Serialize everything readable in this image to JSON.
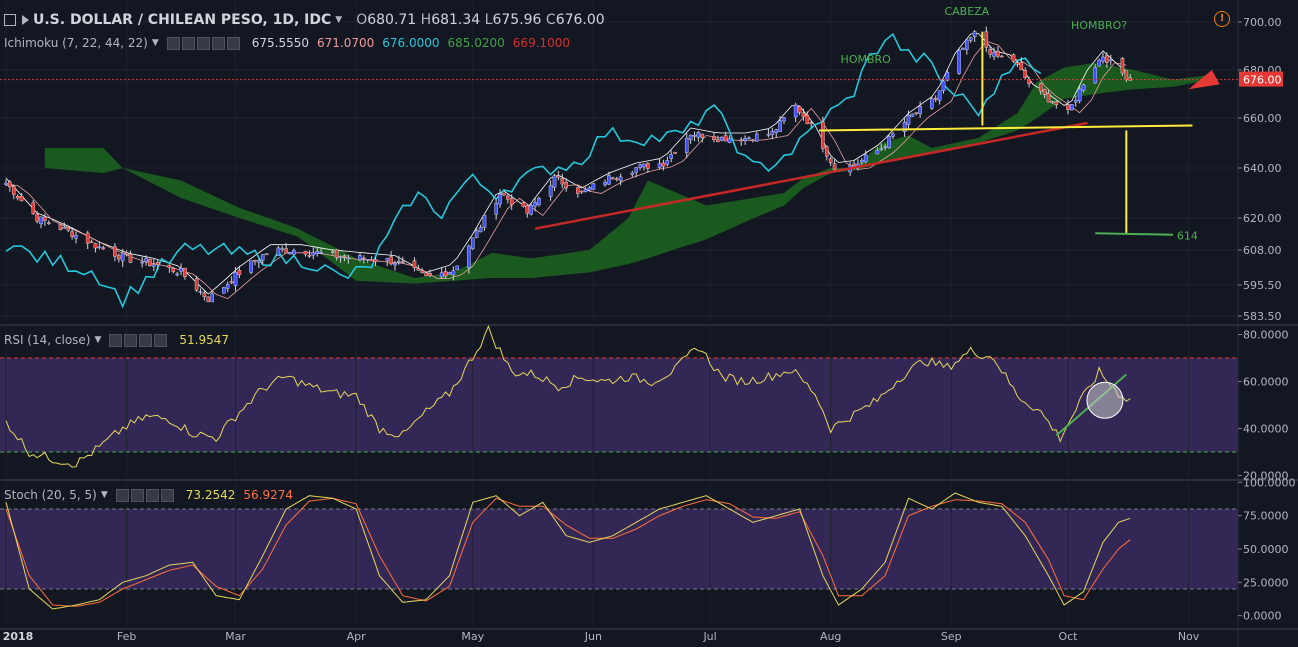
{
  "header": {
    "symbol": "U.S. DOLLAR / CHILEAN PESO, 1D, IDC",
    "open_label": "O",
    "open": "680.71",
    "high_label": "H",
    "high": "681.34",
    "low_label": "L",
    "low": "675.96",
    "close_label": "C",
    "close": "676.00"
  },
  "ichimoku": {
    "label": "Ichimoku (7, 22, 44, 22)",
    "values": [
      "675.5550",
      "671.0700",
      "676.0000",
      "685.0200",
      "669.1000"
    ],
    "colors": [
      "#d1d4dc",
      "#ef9a9a",
      "#26c6da",
      "#43a047",
      "#d32f2f"
    ]
  },
  "rsi": {
    "label": "RSI (14, close)",
    "value": "51.9547"
  },
  "stoch": {
    "label": "Stoch (20, 5, 5)",
    "k": "73.2542",
    "d": "56.9274"
  },
  "colors": {
    "bg": "#131722",
    "up": "#3f51ff",
    "down": "#e53935",
    "tenkan": "#ffffff",
    "kijun": "#e8a0a0",
    "chikou": "#26c6da",
    "kumo_bull": "#1b5e20",
    "kumo_bear": "#b71c1c",
    "rsi": "#e6d85a",
    "stoch_k": "#e6d85a",
    "stoch_d": "#ff6f3c",
    "band": "#3a2a5e"
  },
  "chart_data": [
    {
      "type": "candlestick",
      "price_axis": [
        "700.00",
        "680.00",
        "660.00",
        "640.00",
        "620.00",
        "608.00",
        "595.50",
        "583.50"
      ],
      "price_ticks": [
        700,
        680,
        660,
        640,
        620,
        608,
        595.5,
        583.5
      ],
      "last_price": "676.00",
      "x_labels": [
        "2018",
        "Feb",
        "Mar",
        "Apr",
        "May",
        "Jun",
        "Jul",
        "Aug",
        "Sep",
        "Oct",
        "Nov"
      ],
      "x_label_days": [
        0,
        31,
        59,
        90,
        120,
        151,
        181,
        212,
        243,
        273,
        304
      ],
      "annotations": [
        {
          "text": "CABEZA",
          "color": "#4caf50"
        },
        {
          "text": "HOMBRO?",
          "color": "#4caf50"
        },
        {
          "text": "HOMBRO",
          "color": "#4caf50"
        },
        {
          "text": "614",
          "color": "#4caf50"
        }
      ],
      "close_anchors": [
        [
          0,
          634
        ],
        [
          8,
          620
        ],
        [
          16,
          615
        ],
        [
          24,
          609
        ],
        [
          31,
          605
        ],
        [
          38,
          603
        ],
        [
          45,
          600
        ],
        [
          52,
          590
        ],
        [
          60,
          600
        ],
        [
          68,
          608
        ],
        [
          76,
          608
        ],
        [
          84,
          606
        ],
        [
          92,
          605
        ],
        [
          100,
          604
        ],
        [
          108,
          598
        ],
        [
          115,
          601
        ],
        [
          120,
          612
        ],
        [
          127,
          630
        ],
        [
          134,
          622
        ],
        [
          141,
          636
        ],
        [
          148,
          630
        ],
        [
          155,
          636
        ],
        [
          162,
          640
        ],
        [
          169,
          642
        ],
        [
          176,
          654
        ],
        [
          183,
          652
        ],
        [
          190,
          652
        ],
        [
          197,
          654
        ],
        [
          203,
          665
        ],
        [
          208,
          655
        ],
        [
          213,
          640
        ],
        [
          218,
          641
        ],
        [
          225,
          648
        ],
        [
          232,
          660
        ],
        [
          239,
          668
        ],
        [
          244,
          685
        ],
        [
          249,
          695
        ],
        [
          254,
          686
        ],
        [
          259,
          684
        ],
        [
          264,
          672
        ],
        [
          268,
          668
        ],
        [
          273,
          662
        ],
        [
          278,
          678
        ],
        [
          282,
          686
        ],
        [
          286,
          680
        ],
        [
          289,
          676
        ]
      ]
    },
    {
      "type": "line",
      "name": "RSI (14, close)",
      "y_axis": [
        "80.0000",
        "60.0000",
        "40.0000",
        "20.0000"
      ],
      "y_ticks": [
        80,
        60,
        40,
        20
      ],
      "bands": [
        70,
        30
      ],
      "anchors": [
        [
          0,
          43
        ],
        [
          6,
          30
        ],
        [
          12,
          27
        ],
        [
          18,
          25
        ],
        [
          24,
          32
        ],
        [
          30,
          40
        ],
        [
          36,
          45
        ],
        [
          42,
          44
        ],
        [
          48,
          38
        ],
        [
          54,
          36
        ],
        [
          60,
          47
        ],
        [
          66,
          57
        ],
        [
          72,
          62
        ],
        [
          78,
          58
        ],
        [
          84,
          55
        ],
        [
          90,
          54
        ],
        [
          96,
          40
        ],
        [
          102,
          37
        ],
        [
          108,
          47
        ],
        [
          114,
          55
        ],
        [
          118,
          65
        ],
        [
          124,
          82
        ],
        [
          130,
          64
        ],
        [
          136,
          63
        ],
        [
          142,
          58
        ],
        [
          148,
          62
        ],
        [
          154,
          60
        ],
        [
          160,
          62
        ],
        [
          166,
          60
        ],
        [
          172,
          65
        ],
        [
          178,
          75
        ],
        [
          184,
          62
        ],
        [
          190,
          60
        ],
        [
          196,
          62
        ],
        [
          202,
          65
        ],
        [
          208,
          55
        ],
        [
          212,
          40
        ],
        [
          218,
          46
        ],
        [
          224,
          52
        ],
        [
          230,
          62
        ],
        [
          236,
          69
        ],
        [
          242,
          66
        ],
        [
          248,
          73
        ],
        [
          254,
          70
        ],
        [
          260,
          54
        ],
        [
          266,
          47
        ],
        [
          271,
          36
        ],
        [
          276,
          51
        ],
        [
          281,
          64
        ],
        [
          286,
          55
        ],
        [
          289,
          52
        ]
      ]
    },
    {
      "type": "line",
      "name": "Stoch (20, 5, 5)",
      "y_axis": [
        "100.0000",
        "75.0000",
        "50.0000",
        "25.0000",
        "0.0000"
      ],
      "y_ticks": [
        100,
        75,
        50,
        25,
        0
      ],
      "bands": [
        80,
        20
      ],
      "k_anchors": [
        [
          0,
          85
        ],
        [
          6,
          20
        ],
        [
          12,
          5
        ],
        [
          18,
          8
        ],
        [
          24,
          12
        ],
        [
          30,
          25
        ],
        [
          36,
          30
        ],
        [
          42,
          38
        ],
        [
          48,
          40
        ],
        [
          54,
          15
        ],
        [
          60,
          12
        ],
        [
          66,
          45
        ],
        [
          72,
          80
        ],
        [
          78,
          90
        ],
        [
          84,
          88
        ],
        [
          90,
          80
        ],
        [
          96,
          30
        ],
        [
          102,
          10
        ],
        [
          108,
          12
        ],
        [
          114,
          30
        ],
        [
          120,
          85
        ],
        [
          126,
          90
        ],
        [
          132,
          75
        ],
        [
          138,
          85
        ],
        [
          144,
          60
        ],
        [
          150,
          55
        ],
        [
          156,
          60
        ],
        [
          162,
          70
        ],
        [
          168,
          80
        ],
        [
          174,
          85
        ],
        [
          180,
          90
        ],
        [
          186,
          80
        ],
        [
          192,
          70
        ],
        [
          198,
          75
        ],
        [
          204,
          80
        ],
        [
          210,
          30
        ],
        [
          214,
          8
        ],
        [
          220,
          20
        ],
        [
          226,
          40
        ],
        [
          232,
          88
        ],
        [
          238,
          80
        ],
        [
          244,
          92
        ],
        [
          250,
          85
        ],
        [
          256,
          82
        ],
        [
          262,
          60
        ],
        [
          268,
          30
        ],
        [
          272,
          8
        ],
        [
          277,
          18
        ],
        [
          282,
          55
        ],
        [
          286,
          70
        ],
        [
          289,
          73
        ]
      ],
      "d_anchors": [
        [
          0,
          80
        ],
        [
          6,
          30
        ],
        [
          12,
          8
        ],
        [
          18,
          7
        ],
        [
          24,
          10
        ],
        [
          30,
          20
        ],
        [
          36,
          27
        ],
        [
          42,
          34
        ],
        [
          48,
          38
        ],
        [
          54,
          22
        ],
        [
          60,
          15
        ],
        [
          66,
          35
        ],
        [
          72,
          68
        ],
        [
          78,
          86
        ],
        [
          84,
          88
        ],
        [
          90,
          84
        ],
        [
          96,
          45
        ],
        [
          102,
          15
        ],
        [
          108,
          11
        ],
        [
          114,
          22
        ],
        [
          120,
          70
        ],
        [
          126,
          88
        ],
        [
          132,
          82
        ],
        [
          138,
          82
        ],
        [
          144,
          68
        ],
        [
          150,
          58
        ],
        [
          156,
          58
        ],
        [
          162,
          65
        ],
        [
          168,
          75
        ],
        [
          174,
          82
        ],
        [
          180,
          87
        ],
        [
          186,
          84
        ],
        [
          192,
          74
        ],
        [
          198,
          73
        ],
        [
          204,
          78
        ],
        [
          210,
          45
        ],
        [
          214,
          15
        ],
        [
          220,
          15
        ],
        [
          226,
          30
        ],
        [
          232,
          75
        ],
        [
          238,
          82
        ],
        [
          244,
          87
        ],
        [
          250,
          86
        ],
        [
          256,
          84
        ],
        [
          262,
          70
        ],
        [
          268,
          42
        ],
        [
          272,
          15
        ],
        [
          277,
          12
        ],
        [
          282,
          35
        ],
        [
          286,
          50
        ],
        [
          289,
          57
        ]
      ]
    }
  ]
}
